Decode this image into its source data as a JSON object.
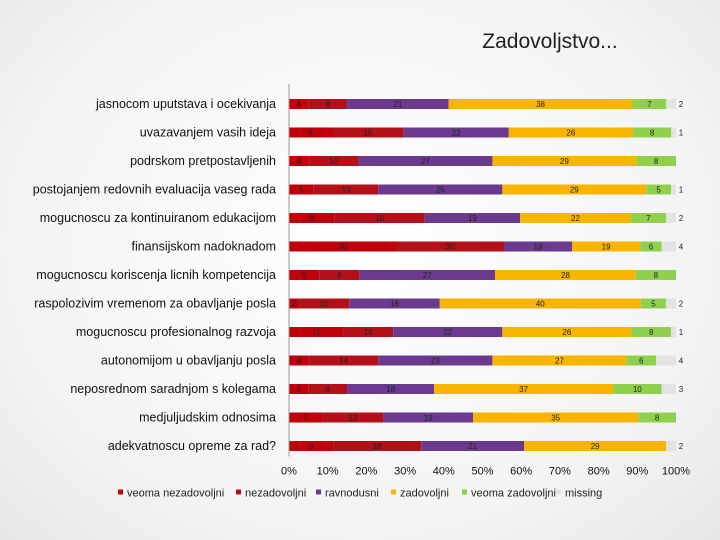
{
  "chart_data": {
    "type": "bar",
    "orientation": "horizontal",
    "stacked": "percent",
    "title": "Zadovoljstvo...",
    "categories": [
      "jasnocom uputstava i ocekivanja",
      "uvazavanjem vasih ideja",
      "podrskom pretpostavljenih",
      "postojanjem redovnih evaluacija vaseg rada",
      "mogucnoscu za kontinuiranom edukacijom",
      "finansijskom nadoknadom",
      "mogucnoscu koriscenja licnih kompetencija",
      "raspolozivim vremenom za obavljanje posla",
      "mogucnoscu profesionalnog razvoja",
      "autonomijom u obavljanju posla",
      "neposrednom saradnjom s kolegama",
      "medjuljudskim odnosima",
      "adekvatnoscu opreme za rad?"
    ],
    "series": [
      {
        "name": "veoma nezadovoljni",
        "color": "#c0000b",
        "values": [
          4,
          9,
          4,
          5,
          9,
          30,
          6,
          2,
          11,
          4,
          4,
          7,
          9
        ]
      },
      {
        "name": "nezadovoljni",
        "color": "#b3101a",
        "values": [
          8,
          15,
          10,
          13,
          18,
          30,
          8,
          10,
          10,
          14,
          8,
          13,
          18
        ]
      },
      {
        "name": "ravnodusni",
        "color": "#6b3a8e",
        "values": [
          21,
          22,
          27,
          25,
          19,
          19,
          27,
          18,
          22,
          23,
          18,
          19,
          21
        ]
      },
      {
        "name": "zadovoljni",
        "color": "#f7b500",
        "values": [
          38,
          26,
          29,
          29,
          22,
          19,
          28,
          40,
          26,
          27,
          37,
          35,
          29
        ]
      },
      {
        "name": "veoma zadovoljni",
        "color": "#8fd14f",
        "values": [
          7,
          8,
          8,
          5,
          7,
          6,
          8,
          5,
          8,
          6,
          10,
          8,
          0
        ]
      },
      {
        "name": "missing",
        "color": "#e3e3e3",
        "values": [
          2,
          1,
          0,
          1,
          2,
          4,
          0,
          2,
          1,
          4,
          3,
          0,
          2
        ]
      }
    ],
    "xlim": [
      0,
      100
    ],
    "xticks": [
      "0%",
      "10%",
      "20%",
      "30%",
      "40%",
      "50%",
      "60%",
      "70%",
      "80%",
      "90%",
      "100%"
    ],
    "legend": "bottom"
  }
}
